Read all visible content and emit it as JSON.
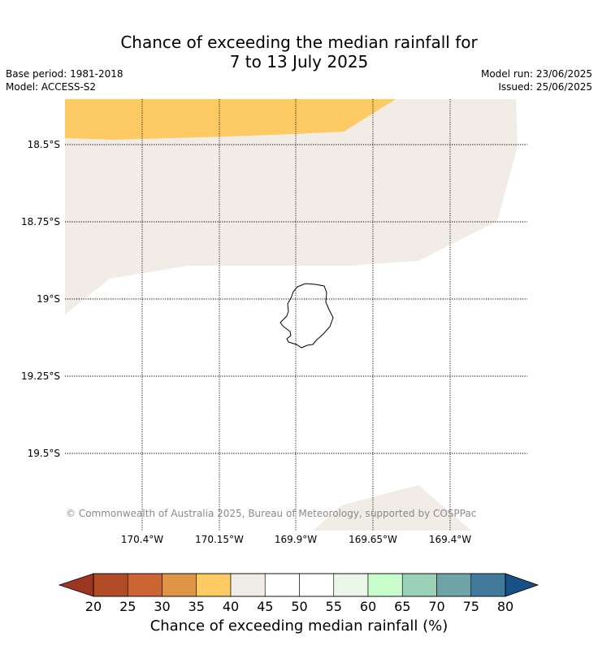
{
  "title": {
    "line1": "Chance of exceeding the median rainfall for",
    "line2": "7 to 13 July 2025"
  },
  "meta": {
    "base_period": "Base period: 1981-2018",
    "model": "Model: ACCESS-S2",
    "model_run": "Model run: 23/06/2025",
    "issued": "Issued: 25/06/2025"
  },
  "map": {
    "lat_labels": [
      "18.5°S",
      "18.75°S",
      "19°S",
      "19.25°S",
      "19.5°S"
    ],
    "lon_labels": [
      "170.4°W",
      "170.15°W",
      "169.9°W",
      "169.65°W",
      "169.4°W"
    ],
    "copyright": "© Commonwealth of Australia 2025, Bureau of Meteorology, supported by COSPPac",
    "region_colors": {
      "35-40": "#fdca64",
      "40-45": "#f1ece6",
      "45-55": "#ffffff"
    }
  },
  "colorbar": {
    "label": "Chance of exceeding median rainfall (%)",
    "ticks": [
      "20",
      "25",
      "30",
      "35",
      "40",
      "45",
      "50",
      "55",
      "60",
      "65",
      "70",
      "75",
      "80"
    ],
    "under_color": "#9c3522",
    "over_color": "#174f86",
    "colors": [
      "#b24c27",
      "#cb6533",
      "#e09446",
      "#fdca64",
      "#f1ece6",
      "#ffffff",
      "#ffffff",
      "#eaf6e8",
      "#c9fdcc",
      "#9bd0b7",
      "#6fa3a8",
      "#417a9a"
    ]
  }
}
